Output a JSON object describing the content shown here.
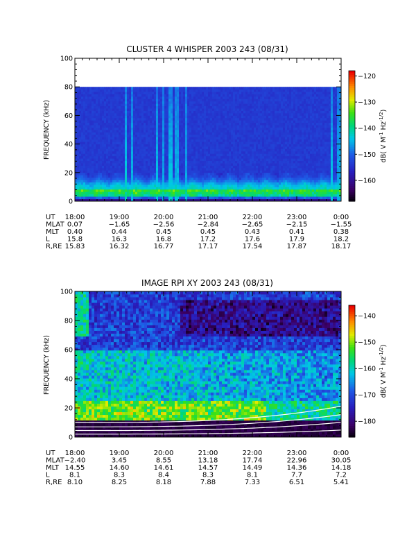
{
  "chart_data": [
    {
      "type": "heatmap",
      "title": "CLUSTER 4 WHISPER 2003 243 (08/31)",
      "ylabel": "FREQUENCY (kHz)",
      "ylim": [
        0,
        100
      ],
      "yticks": [
        "0",
        "20",
        "40",
        "60",
        "80",
        "100"
      ],
      "data_ceiling_khz": 80,
      "time_ticks": [
        "18:00",
        "19:00",
        "20:00",
        "21:00",
        "22:00",
        "23:00",
        "0:00"
      ],
      "colorbar": {
        "label": "dB( V M⁻¹ Hz⁻¹ᐟ²)",
        "label_parts": [
          "dB( V M",
          "-1",
          " Hz",
          "-1/2",
          ")"
        ],
        "range": [
          -168,
          -118
        ],
        "ticks": [
          "-120",
          "-130",
          "-140",
          "-150",
          "-160"
        ]
      },
      "ephemeris": [
        {
          "name": "UT",
          "values": [
            "18:00",
            "19:00",
            "20:00",
            "21:00",
            "22:00",
            "23:00",
            "0:00"
          ]
        },
        {
          "name": "MLAT",
          "values": [
            "0.07",
            "−1.65",
            "−2.56",
            "−2.84",
            "−2.65",
            "−2.15",
            "−1.55"
          ]
        },
        {
          "name": "MLT",
          "values": [
            "0.40",
            "0.44",
            "0.45",
            "0.45",
            "0.43",
            "0.41",
            "0.38"
          ]
        },
        {
          "name": "L",
          "values": [
            "15.8",
            "16.3",
            "16.8",
            "17.2",
            "17.6",
            "17.9",
            "18.2"
          ]
        },
        {
          "name": "R,RE",
          "values": [
            "15.83",
            "16.32",
            "16.77",
            "17.17",
            "17.54",
            "17.87",
            "18.17"
          ]
        }
      ]
    },
    {
      "type": "heatmap",
      "title": "IMAGE RPI XY 2003 243 (08/31)",
      "ylabel": "FREQUENCY (kHz)",
      "ylim": [
        0,
        100
      ],
      "yticks": [
        "0",
        "20",
        "40",
        "60",
        "80",
        "100"
      ],
      "time_ticks": [
        "18:00",
        "19:00",
        "20:00",
        "21:00",
        "22:00",
        "23:00",
        "0:00"
      ],
      "colorbar": {
        "label_parts": [
          "dB( V M",
          "-1",
          " Hz",
          "-1/2",
          ")"
        ],
        "range": [
          -186,
          -136
        ],
        "ticks": [
          "-140",
          "-150",
          "-160",
          "-170",
          "-180"
        ]
      },
      "ephemeris": [
        {
          "name": "UT",
          "values": [
            "18:00",
            "19:00",
            "20:00",
            "21:00",
            "22:00",
            "23:00",
            "0:00"
          ]
        },
        {
          "name": "MLAT",
          "values": [
            "−2.40",
            "3.45",
            "8.55",
            "13.18",
            "17.74",
            "22.96",
            "30.05"
          ]
        },
        {
          "name": "MLT",
          "values": [
            "14.55",
            "14.60",
            "14.61",
            "14.57",
            "14.49",
            "14.36",
            "14.18"
          ]
        },
        {
          "name": "L",
          "values": [
            "8.1",
            "8.3",
            "8.4",
            "8.3",
            "8.1",
            "7.7",
            "7.2"
          ]
        },
        {
          "name": "R,RE",
          "values": [
            "8.10",
            "8.25",
            "8.18",
            "7.88",
            "7.33",
            "6.51",
            "5.41"
          ]
        }
      ]
    }
  ]
}
